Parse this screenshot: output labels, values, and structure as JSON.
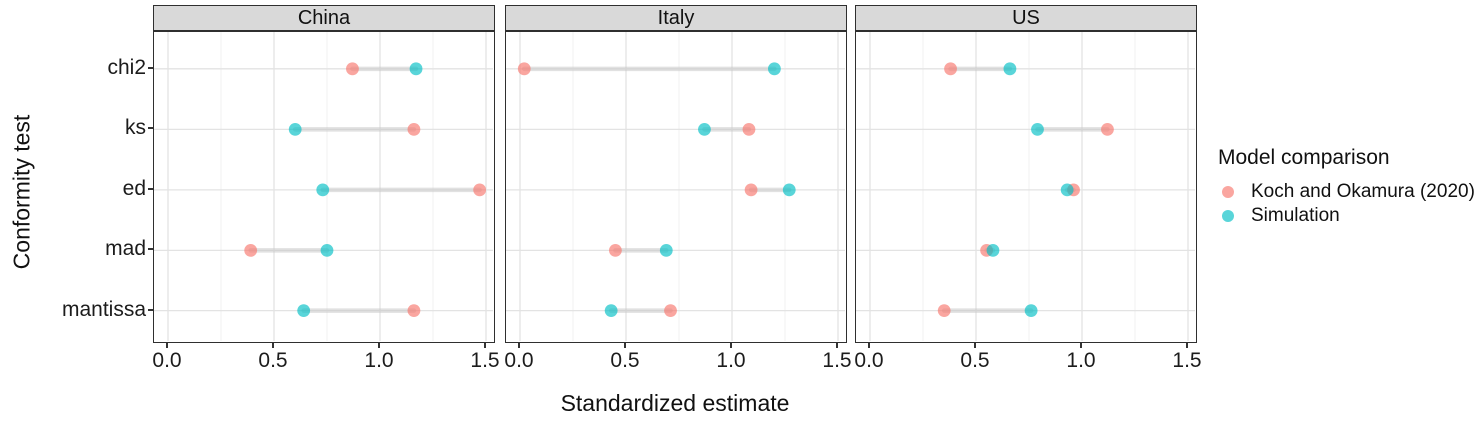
{
  "chart_data": {
    "type": "scatter",
    "subtype": "dumbbell-dot-plot",
    "xlabel": "Standardized estimate",
    "ylabel": "Conformity test",
    "categories": [
      "chi2",
      "ks",
      "ed",
      "mad",
      "mantissa"
    ],
    "x_ticks": [
      "0.0",
      "0.5",
      "1.0",
      "1.5"
    ],
    "x_tick_values": [
      0,
      0.5,
      1,
      1.5
    ],
    "xlim": [
      -0.066,
      1.547
    ],
    "grid": {
      "show": true,
      "major_step": 0.5,
      "minor_step": 0.25
    },
    "legend": {
      "position": "right",
      "title": "Model comparison",
      "items": [
        {
          "name": "koch",
          "label": "Koch and Okamura (2020)",
          "color": "#F8766D"
        },
        {
          "name": "sim",
          "label": "Simulation",
          "color": "#00BFC4"
        }
      ]
    },
    "point_opacity": 0.65,
    "segment_color": "#C9C9C9",
    "strip_fill": "#D9D9D9",
    "panel_border": "#2F2F2F",
    "major_grid_color": "#E3E3E3",
    "minor_grid_color": "#F0F0F0",
    "facets": [
      {
        "label": "China",
        "series": [
          {
            "name": "koch",
            "values": [
              0.87,
              1.16,
              1.47,
              0.39,
              1.16
            ]
          },
          {
            "name": "sim",
            "values": [
              1.17,
              0.6,
              0.73,
              0.75,
              0.64
            ]
          }
        ]
      },
      {
        "label": "Italy",
        "series": [
          {
            "name": "koch",
            "values": [
              0.02,
              1.08,
              1.09,
              0.45,
              0.71
            ]
          },
          {
            "name": "sim",
            "values": [
              1.2,
              0.87,
              1.27,
              0.69,
              0.43
            ]
          }
        ]
      },
      {
        "label": "US",
        "series": [
          {
            "name": "koch",
            "values": [
              0.38,
              1.12,
              0.96,
              0.55,
              0.35
            ]
          },
          {
            "name": "sim",
            "values": [
              0.66,
              0.79,
              0.93,
              0.58,
              0.76
            ]
          }
        ]
      }
    ]
  }
}
